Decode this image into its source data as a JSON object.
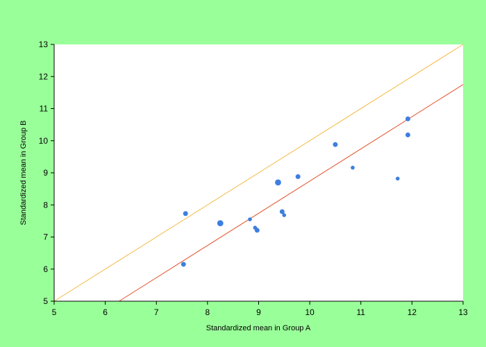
{
  "chart_data": {
    "type": "scatter",
    "title": "",
    "xlabel": "Standardized mean in Group A",
    "ylabel": "Standardized mean in Group B",
    "xlim": [
      5,
      13
    ],
    "ylim": [
      5,
      13
    ],
    "xticks": [
      5,
      6,
      7,
      8,
      9,
      10,
      11,
      12,
      13
    ],
    "yticks": [
      5,
      6,
      7,
      8,
      9,
      10,
      11,
      12,
      13
    ],
    "grid": false,
    "colors": {
      "background": "#99ff99",
      "plot_area": "#ffffff",
      "points": "#3d7fe0",
      "identity_line": "#f4b942",
      "fit_line": "#e2522b"
    },
    "points": [
      {
        "x": 7.53,
        "y": 6.15,
        "size": "medium"
      },
      {
        "x": 7.57,
        "y": 7.73,
        "size": "medium"
      },
      {
        "x": 8.25,
        "y": 7.43,
        "size": "large"
      },
      {
        "x": 8.83,
        "y": 7.55,
        "size": "small"
      },
      {
        "x": 8.93,
        "y": 7.29,
        "size": "small"
      },
      {
        "x": 8.97,
        "y": 7.21,
        "size": "medium"
      },
      {
        "x": 9.38,
        "y": 8.7,
        "size": "large"
      },
      {
        "x": 9.46,
        "y": 7.79,
        "size": "medium"
      },
      {
        "x": 9.5,
        "y": 7.68,
        "size": "small"
      },
      {
        "x": 9.77,
        "y": 8.88,
        "size": "medium"
      },
      {
        "x": 10.5,
        "y": 9.88,
        "size": "medium"
      },
      {
        "x": 10.84,
        "y": 9.16,
        "size": "small"
      },
      {
        "x": 11.72,
        "y": 8.82,
        "size": "small"
      },
      {
        "x": 11.92,
        "y": 10.68,
        "size": "medium"
      },
      {
        "x": 11.92,
        "y": 10.18,
        "size": "medium"
      }
    ],
    "lines": [
      {
        "kind": "identity",
        "color": "#f4b942",
        "from": [
          5,
          5
        ],
        "to": [
          13,
          13
        ]
      },
      {
        "kind": "fit",
        "color": "#e2522b",
        "from": [
          6.27,
          5
        ],
        "to": [
          13,
          11.75
        ]
      }
    ]
  }
}
